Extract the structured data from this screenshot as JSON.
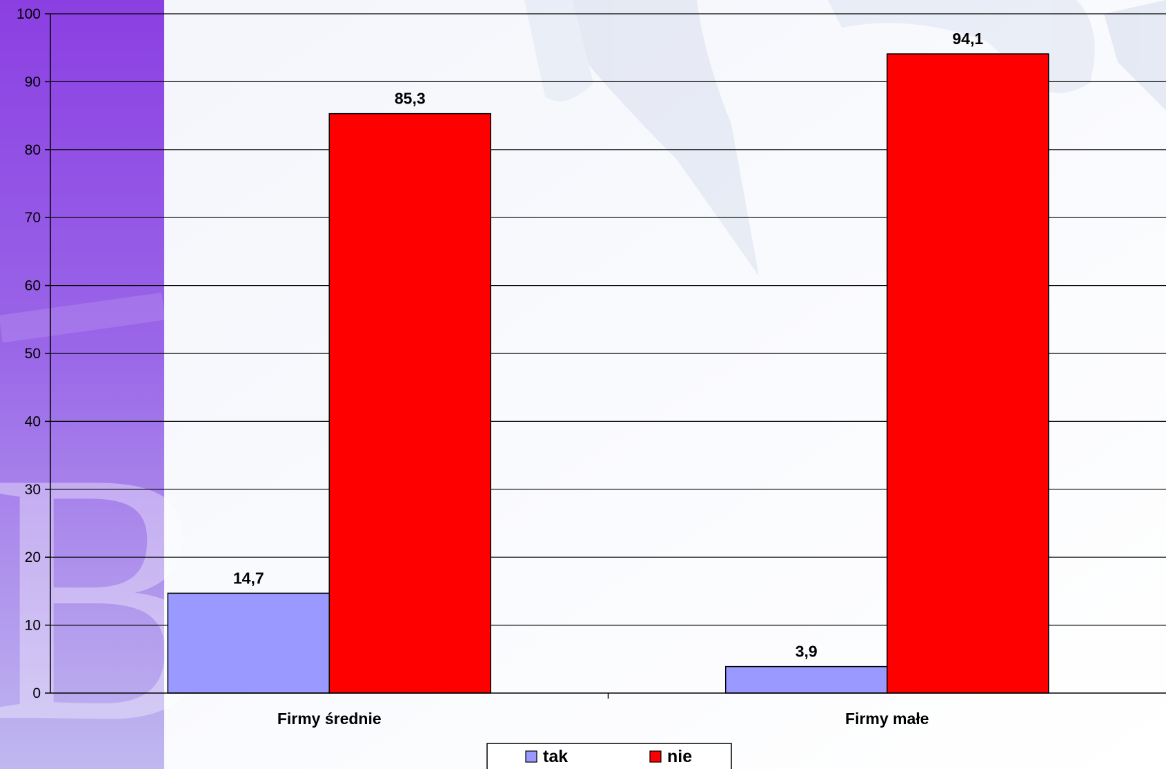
{
  "chart_data": {
    "type": "bar",
    "categories": [
      "Firmy średnie",
      "Firmy małe"
    ],
    "series": [
      {
        "name": "tak",
        "values": [
          14.7,
          3.9
        ],
        "labels": [
          "14,7",
          "3,9"
        ],
        "color": "#9999ff"
      },
      {
        "name": "nie",
        "values": [
          85.3,
          94.1
        ],
        "labels": [
          "85,3",
          "94,1"
        ],
        "color": "#ff0000"
      }
    ],
    "y_ticks": [
      "0",
      "10",
      "20",
      "30",
      "40",
      "50",
      "60",
      "70",
      "80",
      "90",
      "100"
    ],
    "ylim": [
      0,
      100
    ],
    "grid": true,
    "legend_position": "bottom"
  },
  "colors": {
    "sidebar_top": "#8a3fe0",
    "sidebar_bottom": "#b7b0ee",
    "gridline": "#000000"
  }
}
